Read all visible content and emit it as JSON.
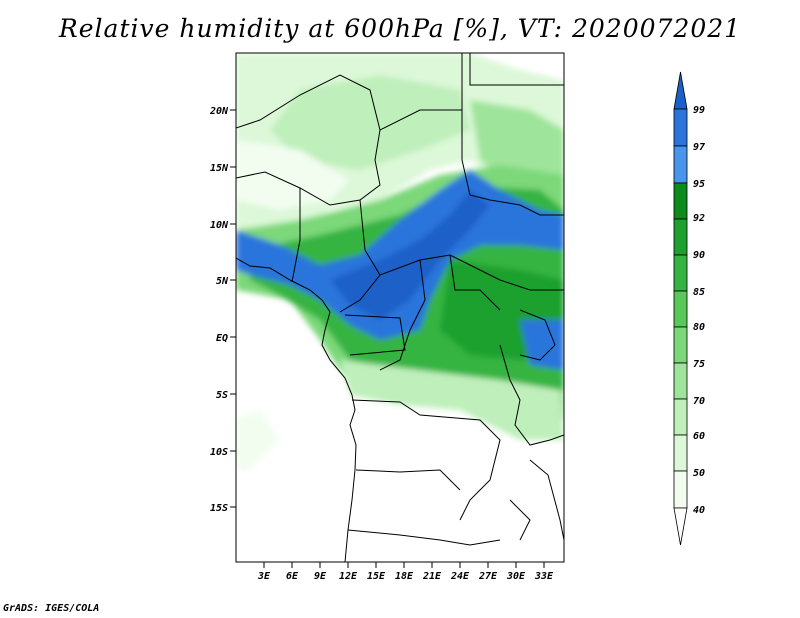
{
  "title": "Relative humidity at 600hPa [%], VT: 2020072021",
  "credit": "GrADS: IGES/COLA",
  "map": {
    "lat_ticks": [
      "20N",
      "15N",
      "10N",
      "5N",
      "EQ",
      "5S",
      "10S",
      "15S"
    ],
    "lon_ticks": [
      "3E",
      "6E",
      "9E",
      "12E",
      "15E",
      "18E",
      "21E",
      "24E",
      "27E",
      "30E",
      "33E"
    ]
  },
  "colorbar": {
    "labels": [
      "99",
      "97",
      "95",
      "92",
      "90",
      "85",
      "80",
      "75",
      "70",
      "60",
      "50",
      "40"
    ],
    "colors": [
      "#1a60c8",
      "#2a74dc",
      "#4a95ec",
      "#0c8c1c",
      "#1ea02e",
      "#35b443",
      "#58c858",
      "#7bd879",
      "#9fe49b",
      "#bfefbb",
      "#dcf8d8",
      "#f2fdf0",
      "#ffffff"
    ]
  }
}
